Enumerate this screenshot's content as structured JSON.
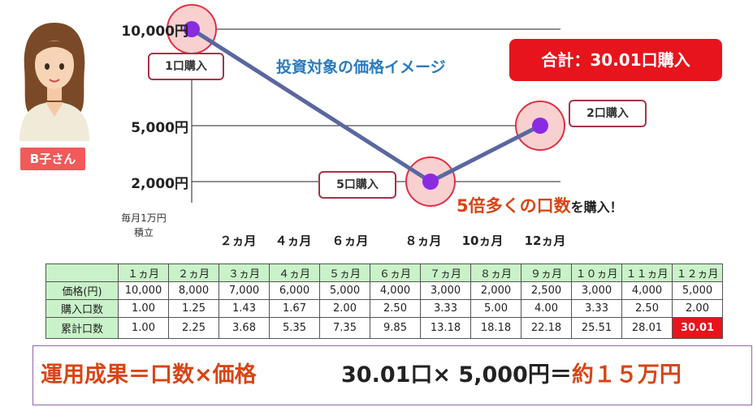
{
  "person": {
    "name": "B子さん"
  },
  "chart_title": "投資対象の価格イメージ",
  "total_badge": "合計：30.01口購入",
  "highlight": {
    "text": "5倍多くの口数",
    "suffix": "を購入！"
  },
  "monthly_note": [
    "毎月1万円",
    "積立"
  ],
  "colors": {
    "line": "#5a67a0",
    "point": "#8a2be2",
    "halo": "#f8d0d0",
    "halo_border": "#e03040",
    "accent_red": "#e8141c",
    "accent_orange": "#d84515",
    "header_green": "#c9f2c9"
  },
  "chart_data": {
    "type": "line",
    "yticks": [
      {
        "value": 10000,
        "label": "10,000円"
      },
      {
        "value": 5000,
        "label": "5,000円"
      },
      {
        "value": 2000,
        "label": "2,000円"
      }
    ],
    "x_labels": [
      "２ヵ月",
      "４ヵ月",
      "６ヵ月",
      "８ヵ月",
      "10ヵ月",
      "12ヵ月"
    ],
    "x_label_months": [
      2,
      4,
      6,
      8,
      10,
      12
    ],
    "points": [
      {
        "month": 1,
        "value": 10000
      },
      {
        "month": 8,
        "value": 2000
      },
      {
        "month": 12,
        "value": 5000
      }
    ],
    "callouts": [
      {
        "label": "1口購入"
      },
      {
        "label": "5口購入"
      },
      {
        "label": "2口購入"
      }
    ]
  },
  "table": {
    "columns": [
      "１ヵ月",
      "２ヵ月",
      "３ヵ月",
      "４ヵ月",
      "５ヵ月",
      "６ヵ月",
      "７ヵ月",
      "８ヵ月",
      "９ヵ月",
      "１０ヵ月",
      "１１ヵ月",
      "１２ヵ月"
    ],
    "rows": [
      {
        "label": "価格(円)",
        "values": [
          "10,000",
          "8,000",
          "7,000",
          "6,000",
          "5,000",
          "4,000",
          "3,000",
          "2,000",
          "2,500",
          "3,000",
          "4,000",
          "5,000"
        ]
      },
      {
        "label": "購入口数",
        "values": [
          "1.00",
          "1.25",
          "1.43",
          "1.67",
          "2.00",
          "2.50",
          "3.33",
          "5.00",
          "4.00",
          "3.33",
          "2.50",
          "2.00"
        ]
      },
      {
        "label": "累計口数",
        "values": [
          "1.00",
          "2.25",
          "3.68",
          "5.35",
          "7.35",
          "9.85",
          "13.18",
          "18.18",
          "22.18",
          "25.51",
          "28.01",
          "30.01"
        ]
      }
    ]
  },
  "formula": {
    "left": "運用成果＝口数×価格",
    "right_main": "30.01口× 5,000円＝",
    "right_result": "約１５万円"
  }
}
